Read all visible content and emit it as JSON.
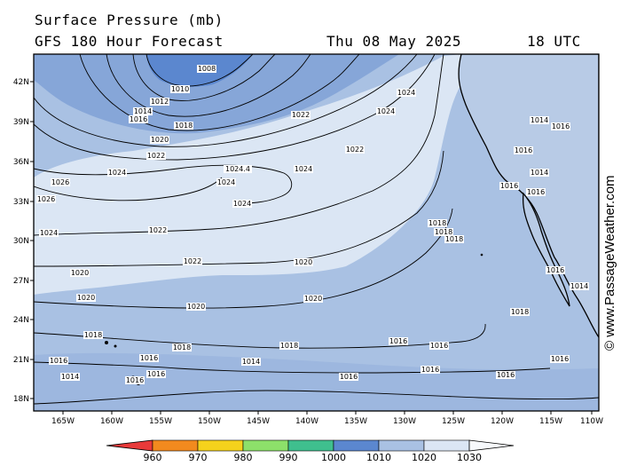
{
  "title": "Surface Pressure (mb)",
  "subtitle": "GFS 180 Hour Forecast",
  "date": "Thu 08 May 2025",
  "time": "18 UTC",
  "credit": "© www.PassageWeather.com",
  "colors": {
    "b1000": "#5b87cf",
    "b1010": "#86a6d8",
    "b1020": "#a9c1e3",
    "b1030": "#dbe6f4",
    "land": "#b8cbe6",
    "contour": "#000000"
  },
  "lat_labels": [
    "42N",
    "39N",
    "36N",
    "33N",
    "30N",
    "27N",
    "24N",
    "21N",
    "18N"
  ],
  "lon_labels": [
    "165W",
    "160W",
    "155W",
    "150W",
    "145W",
    "140W",
    "135W",
    "130W",
    "125W",
    "120W",
    "115W",
    "110W"
  ],
  "isobar_labels": [
    "1008",
    "1010",
    "1012",
    "1014",
    "1016",
    "1018",
    "1020",
    "1022",
    "1024",
    "1024",
    "1024.4",
    "1024",
    "1024",
    "1022",
    "1024",
    "1026",
    "1026",
    "1024",
    "1024",
    "1022",
    "1022",
    "1022",
    "1020",
    "1020",
    "1020",
    "1020",
    "1020",
    "1018",
    "1018",
    "1018",
    "1018",
    "1018",
    "1018",
    "1016",
    "1016",
    "1016",
    "1016",
    "1016",
    "1016",
    "1014",
    "1016",
    "1016",
    "1016",
    "1014",
    "1016",
    "1018",
    "1016",
    "1016",
    "1014",
    "1016",
    "1014",
    "1016",
    "1016",
    "1014"
  ],
  "colorbar": {
    "labels": [
      "960",
      "970",
      "980",
      "990",
      "1000",
      "1010",
      "1020",
      "1030"
    ],
    "colors": [
      "#e83a3a",
      "#f28a1e",
      "#f5d21c",
      "#8de06a",
      "#3fbf8e",
      "#5b87cf",
      "#a9c1e3",
      "#dbe6f4"
    ]
  }
}
